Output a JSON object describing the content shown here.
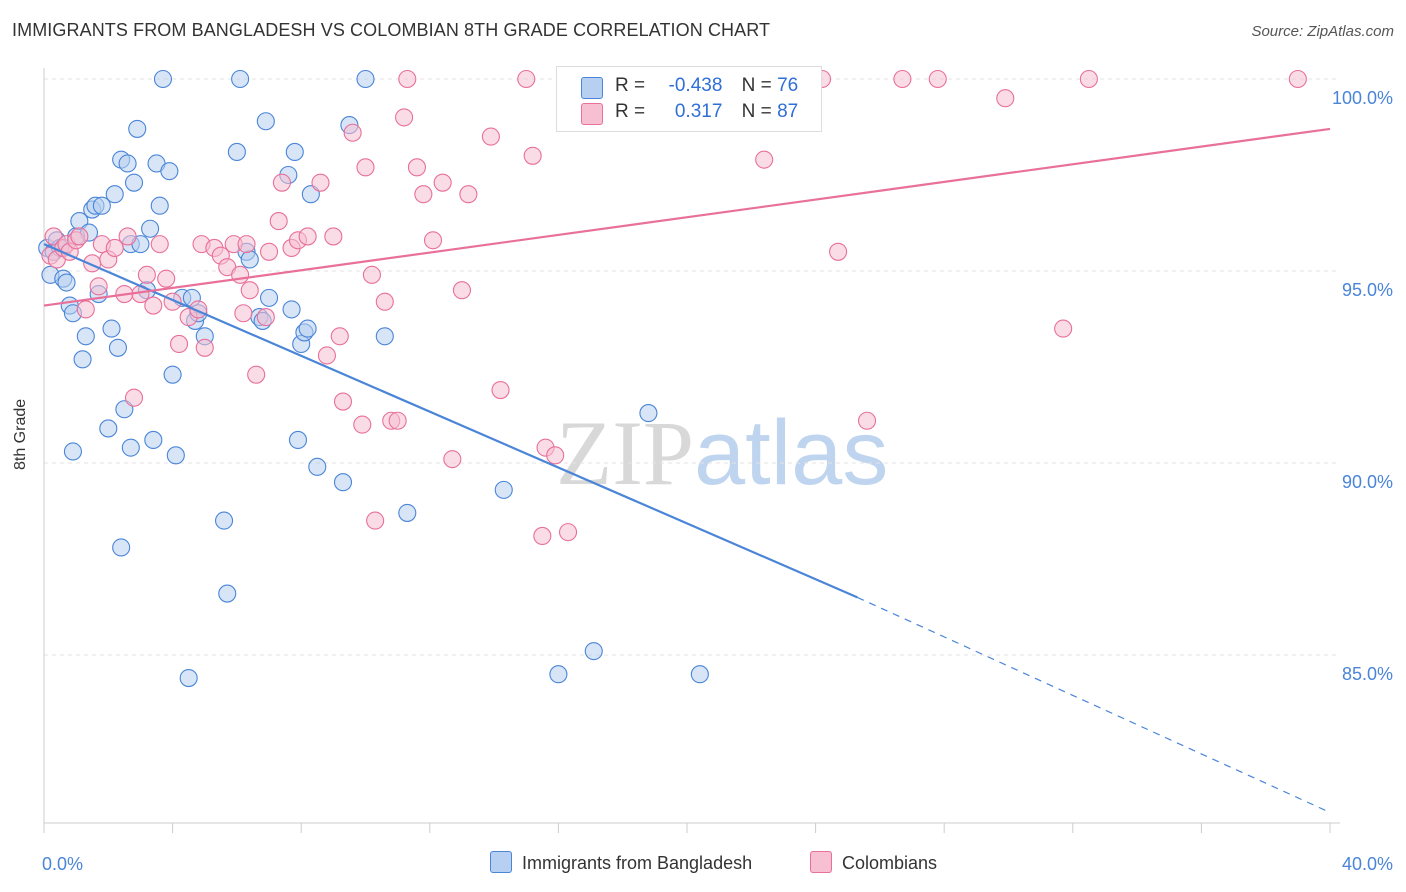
{
  "header": {
    "title": "IMMIGRANTS FROM BANGLADESH VS COLOMBIAN 8TH GRADE CORRELATION CHART",
    "source": "Source: ZipAtlas.com"
  },
  "watermark": {
    "zip": "ZIP",
    "atlas": "atlas"
  },
  "colors": {
    "blue": "#4a85d8",
    "blue_fill": "#b7cff0",
    "pink": "#e8709a",
    "pink_fill": "#f6bfd2",
    "axis_tick_text": "#4a85d8",
    "grid": "#e3e3e3"
  },
  "legend": {
    "rows": [
      {
        "r_label": "R =",
        "r_value": "-0.438",
        "n_label": "N =",
        "n_value": "76"
      },
      {
        "r_label": "R =",
        "r_value": "0.317",
        "n_label": "N =",
        "n_value": "87"
      }
    ]
  },
  "bottom_legend": [
    {
      "label": "Immigrants from Bangladesh"
    },
    {
      "label": "Colombians"
    }
  ],
  "chart_data": {
    "type": "scatter",
    "title": "IMMIGRANTS FROM BANGLADESH VS COLOMBIAN 8TH GRADE CORRELATION CHART",
    "xlabel": "",
    "ylabel": "8th Grade",
    "xlim": [
      0,
      40
    ],
    "ylim": [
      80.5,
      101
    ],
    "x_tick_labels": [
      "0.0%",
      "40.0%"
    ],
    "y_ticks": [
      85,
      90,
      95,
      100
    ],
    "y_tick_labels": [
      "85.0%",
      "90.0%",
      "95.0%",
      "100.0%"
    ],
    "grid": true,
    "legend_position": "top-center",
    "series": [
      {
        "name": "Immigrants from Bangladesh",
        "color": "#4a85d8",
        "fill": "#b7cff0",
        "R": -0.438,
        "N": 76,
        "trend": {
          "x0": 0.0,
          "y0": 95.7,
          "x1": 25.3,
          "y1": 86.5,
          "dash_to_x": 40.0,
          "dash_to_y": 80.9
        },
        "points": [
          [
            0.1,
            95.6
          ],
          [
            0.2,
            94.9
          ],
          [
            0.3,
            95.5
          ],
          [
            0.4,
            95.8
          ],
          [
            0.5,
            95.6
          ],
          [
            0.6,
            94.8
          ],
          [
            0.7,
            94.7
          ],
          [
            0.8,
            94.1
          ],
          [
            0.9,
            93.9
          ],
          [
            1.0,
            95.9
          ],
          [
            1.1,
            96.3
          ],
          [
            1.2,
            92.7
          ],
          [
            1.3,
            93.3
          ],
          [
            1.4,
            96.0
          ],
          [
            1.5,
            96.6
          ],
          [
            1.6,
            96.7
          ],
          [
            1.7,
            94.4
          ],
          [
            1.8,
            96.7
          ],
          [
            2.0,
            90.9
          ],
          [
            2.1,
            93.5
          ],
          [
            2.2,
            97.0
          ],
          [
            2.3,
            93.0
          ],
          [
            2.4,
            97.9
          ],
          [
            2.5,
            91.4
          ],
          [
            2.6,
            97.8
          ],
          [
            2.7,
            95.7
          ],
          [
            2.8,
            97.3
          ],
          [
            2.9,
            98.7
          ],
          [
            3.0,
            95.7
          ],
          [
            3.2,
            94.5
          ],
          [
            3.3,
            96.1
          ],
          [
            3.4,
            90.6
          ],
          [
            3.5,
            97.8
          ],
          [
            3.6,
            96.7
          ],
          [
            3.7,
            100.0
          ],
          [
            3.9,
            97.6
          ],
          [
            4.0,
            92.3
          ],
          [
            4.1,
            90.2
          ],
          [
            4.3,
            94.3
          ],
          [
            4.5,
            84.4
          ],
          [
            4.6,
            94.3
          ],
          [
            4.7,
            93.7
          ],
          [
            4.8,
            93.9
          ],
          [
            5.0,
            93.3
          ],
          [
            5.6,
            88.5
          ],
          [
            5.7,
            86.6
          ],
          [
            6.0,
            98.1
          ],
          [
            6.1,
            100.0
          ],
          [
            6.3,
            95.5
          ],
          [
            6.4,
            95.3
          ],
          [
            6.7,
            93.8
          ],
          [
            6.8,
            93.7
          ],
          [
            6.9,
            98.9
          ],
          [
            7.0,
            94.3
          ],
          [
            7.6,
            97.5
          ],
          [
            7.7,
            94.0
          ],
          [
            7.8,
            98.1
          ],
          [
            7.9,
            90.6
          ],
          [
            8.0,
            93.1
          ],
          [
            8.1,
            93.4
          ],
          [
            8.2,
            93.5
          ],
          [
            8.3,
            97.0
          ],
          [
            8.5,
            89.9
          ],
          [
            9.3,
            89.5
          ],
          [
            9.5,
            98.8
          ],
          [
            10.0,
            100.0
          ],
          [
            10.6,
            93.3
          ],
          [
            11.3,
            88.7
          ],
          [
            14.3,
            89.3
          ],
          [
            16.0,
            84.5
          ],
          [
            17.1,
            85.1
          ],
          [
            18.8,
            91.3
          ],
          [
            20.4,
            84.5
          ],
          [
            0.9,
            90.3
          ],
          [
            2.7,
            90.4
          ],
          [
            2.4,
            87.8
          ]
        ]
      },
      {
        "name": "Colombians",
        "color": "#e8709a",
        "fill": "#f6bfd2",
        "R": 0.317,
        "N": 87,
        "trend": {
          "x0": 0.0,
          "y0": 94.1,
          "x1": 40.0,
          "y1": 98.7
        },
        "points": [
          [
            0.2,
            95.4
          ],
          [
            0.3,
            95.9
          ],
          [
            0.4,
            95.3
          ],
          [
            0.6,
            95.6
          ],
          [
            0.7,
            95.7
          ],
          [
            0.8,
            95.5
          ],
          [
            1.0,
            95.8
          ],
          [
            1.1,
            95.9
          ],
          [
            1.3,
            94.0
          ],
          [
            1.5,
            95.2
          ],
          [
            1.7,
            94.6
          ],
          [
            1.8,
            95.7
          ],
          [
            2.0,
            95.3
          ],
          [
            2.2,
            95.6
          ],
          [
            2.5,
            94.4
          ],
          [
            2.6,
            95.9
          ],
          [
            2.8,
            91.7
          ],
          [
            3.0,
            94.4
          ],
          [
            3.2,
            94.9
          ],
          [
            3.4,
            94.1
          ],
          [
            3.6,
            95.7
          ],
          [
            3.8,
            94.8
          ],
          [
            4.0,
            94.2
          ],
          [
            4.2,
            93.1
          ],
          [
            4.5,
            93.8
          ],
          [
            4.8,
            94.0
          ],
          [
            4.9,
            95.7
          ],
          [
            5.0,
            93.0
          ],
          [
            5.3,
            95.6
          ],
          [
            5.5,
            95.4
          ],
          [
            5.7,
            95.1
          ],
          [
            5.9,
            95.7
          ],
          [
            6.1,
            94.9
          ],
          [
            6.2,
            93.9
          ],
          [
            6.3,
            95.7
          ],
          [
            6.4,
            94.5
          ],
          [
            6.6,
            92.3
          ],
          [
            6.9,
            93.8
          ],
          [
            7.0,
            95.5
          ],
          [
            7.3,
            96.3
          ],
          [
            7.4,
            97.3
          ],
          [
            7.7,
            95.6
          ],
          [
            7.9,
            95.8
          ],
          [
            8.2,
            95.9
          ],
          [
            8.6,
            97.3
          ],
          [
            8.8,
            92.8
          ],
          [
            9.0,
            95.9
          ],
          [
            9.2,
            93.3
          ],
          [
            9.3,
            91.6
          ],
          [
            9.6,
            98.6
          ],
          [
            9.9,
            91.0
          ],
          [
            10.0,
            97.7
          ],
          [
            10.2,
            94.9
          ],
          [
            10.6,
            94.2
          ],
          [
            10.8,
            91.1
          ],
          [
            11.0,
            91.1
          ],
          [
            11.2,
            99.0
          ],
          [
            11.3,
            100.0
          ],
          [
            11.6,
            97.7
          ],
          [
            11.8,
            97.0
          ],
          [
            12.1,
            95.8
          ],
          [
            12.4,
            97.3
          ],
          [
            12.7,
            90.1
          ],
          [
            13.0,
            94.5
          ],
          [
            13.2,
            97.0
          ],
          [
            13.9,
            98.5
          ],
          [
            14.2,
            91.9
          ],
          [
            15.0,
            100.0
          ],
          [
            15.2,
            98.0
          ],
          [
            15.5,
            88.1
          ],
          [
            15.6,
            90.4
          ],
          [
            15.9,
            90.2
          ],
          [
            16.3,
            88.2
          ],
          [
            17.6,
            100.0
          ],
          [
            18.2,
            100.0
          ],
          [
            21.5,
            100.0
          ],
          [
            22.4,
            97.9
          ],
          [
            24.2,
            100.0
          ],
          [
            24.7,
            95.5
          ],
          [
            25.6,
            91.1
          ],
          [
            26.7,
            100.0
          ],
          [
            27.8,
            100.0
          ],
          [
            29.9,
            99.5
          ],
          [
            31.7,
            93.5
          ],
          [
            32.5,
            100.0
          ],
          [
            39.0,
            100.0
          ],
          [
            10.3,
            88.5
          ]
        ]
      }
    ]
  }
}
